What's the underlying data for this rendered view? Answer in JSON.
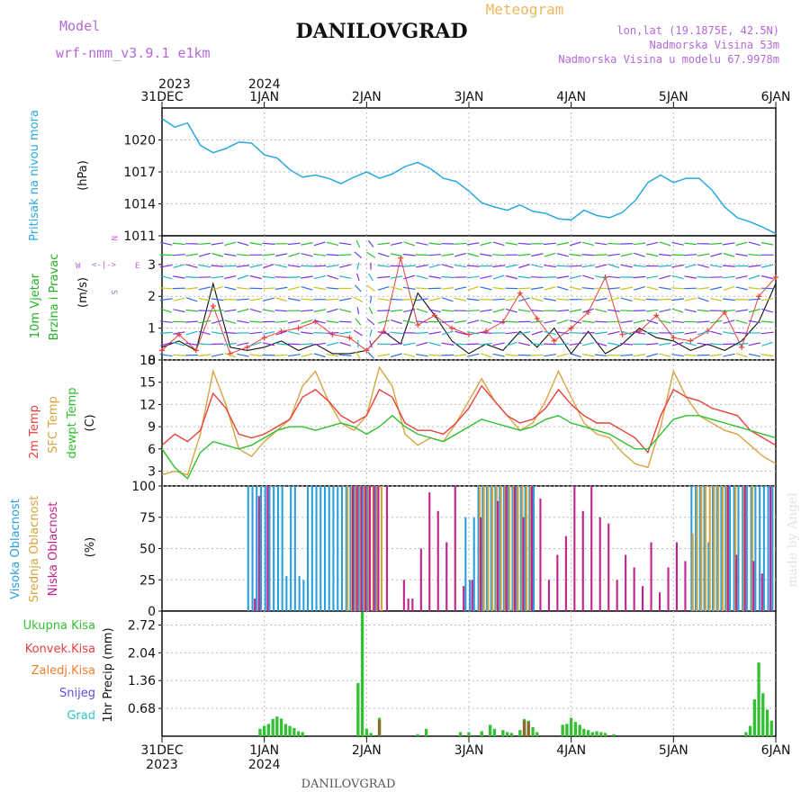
{
  "header": {
    "model_label": "Model",
    "model_name": "wrf-nmm_v3.9.1  e1km",
    "title": "DANILOVGRAD",
    "meteogram_label": "Meteogram",
    "location": "lon,lat (19.1875E, 42.5N)",
    "elevation": "Nadmorska Visina 53m",
    "model_elevation": "Nadmorska Visina u modelu 67.9978m",
    "footer": "DANILOVGRAD",
    "credit": "made by Angel"
  },
  "time_axis": {
    "labels": [
      "31DEC",
      "1JAN",
      "2JAN",
      "3JAN",
      "4JAN",
      "5JAN",
      "6JAN"
    ],
    "years": [
      "2023",
      "2024"
    ],
    "range_hours": [
      0,
      144
    ]
  },
  "colors": {
    "pressure": "#29a9e1",
    "temp2m": "#e8413c",
    "sfc_temp": "#d9a441",
    "dewpoint": "#2ec02e",
    "high_cloud": "#2a9fe0",
    "mid_cloud": "#d6a43c",
    "low_cloud": "#c0228e",
    "total_precip": "#33c033",
    "conv_precip": "#e84040",
    "frozen_precip": "#ef7e2e",
    "snow": "#5a4fe0",
    "hail": "#2ec6c6",
    "wind_label": "#25b024",
    "title_purple": "#b469d9",
    "meteogram_orange": "#e9b95c"
  },
  "chart_data": [
    {
      "type": "line",
      "name": "pressure",
      "ylabel_left": "Pritisak na nivou mora",
      "ylabel_unit": "(hPa)",
      "ylim": [
        1011,
        1023
      ],
      "yticks": [
        1011,
        1014,
        1017,
        1020
      ],
      "x": [
        0,
        3,
        6,
        9,
        12,
        15,
        18,
        21,
        24,
        27,
        30,
        33,
        36,
        39,
        42,
        45,
        48,
        51,
        54,
        57,
        60,
        63,
        66,
        69,
        72,
        75,
        78,
        81,
        84,
        87,
        90,
        93,
        96,
        99,
        102,
        105,
        108,
        111,
        114,
        117,
        120,
        123,
        126,
        129,
        132,
        135,
        138,
        141,
        144
      ],
      "values": [
        1022.0,
        1021.2,
        1021.6,
        1019.5,
        1018.8,
        1019.2,
        1019.8,
        1019.7,
        1018.6,
        1018.3,
        1017.2,
        1016.5,
        1016.7,
        1016.4,
        1015.9,
        1016.5,
        1017.0,
        1016.4,
        1016.8,
        1017.5,
        1017.9,
        1017.3,
        1016.4,
        1016.1,
        1015.2,
        1014.1,
        1013.7,
        1013.4,
        1013.9,
        1013.3,
        1013.1,
        1012.6,
        1012.5,
        1013.4,
        1012.9,
        1012.7,
        1013.2,
        1014.3,
        1016.0,
        1016.7,
        1016.0,
        1016.4,
        1016.4,
        1015.3,
        1013.7,
        1012.7,
        1012.3,
        1011.8,
        1011.2
      ]
    },
    {
      "type": "line",
      "name": "wind",
      "ylabel_left": "10m Vjetar",
      "ylabel_left2": "Brzina i Pravac",
      "ylabel_unit": "(m/s)",
      "compass": [
        "W",
        "E",
        "N",
        "S"
      ],
      "ylim": [
        0,
        3.9
      ],
      "yticks": [
        0,
        1,
        2,
        3
      ],
      "x": [
        0,
        4,
        8,
        12,
        16,
        20,
        24,
        28,
        32,
        36,
        40,
        44,
        48,
        52,
        56,
        60,
        64,
        68,
        72,
        76,
        80,
        84,
        88,
        92,
        96,
        100,
        104,
        108,
        112,
        116,
        120,
        124,
        128,
        132,
        136,
        140,
        144
      ],
      "speed": [
        0.4,
        0.6,
        0.3,
        2.4,
        0.4,
        0.3,
        0.4,
        0.6,
        0.3,
        0.5,
        0.2,
        0.2,
        0.3,
        0.9,
        0.5,
        2.1,
        1.4,
        0.6,
        0.2,
        0.5,
        0.3,
        0.9,
        0.4,
        1.0,
        0.2,
        0.9,
        0.2,
        0.5,
        1.0,
        0.7,
        0.6,
        0.3,
        0.5,
        0.3,
        0.6,
        1.2,
        2.4
      ],
      "speed_alt": [
        0.3,
        0.8,
        0.3,
        1.7,
        0.2,
        0.4,
        0.7,
        0.9,
        1.0,
        1.2,
        0.8,
        0.7,
        0.3,
        0.9,
        3.2,
        1.1,
        1.4,
        1.0,
        0.8,
        0.9,
        1.2,
        2.1,
        1.3,
        0.6,
        1.0,
        1.5,
        2.6,
        0.8,
        0.9,
        1.4,
        0.7,
        0.6,
        0.9,
        1.5,
        0.4,
        2.0,
        2.6
      ]
    },
    {
      "type": "line",
      "name": "temperature",
      "ylabel_left": "2m Temp",
      "ylabel_left2": "SFC Temp",
      "ylabel_left3": "dewpt Temp",
      "ylabel_unit": "(C)",
      "ylim": [
        1,
        18
      ],
      "yticks": [
        3,
        6,
        9,
        12,
        15,
        18
      ],
      "x": [
        0,
        3,
        6,
        9,
        12,
        15,
        18,
        21,
        24,
        27,
        30,
        33,
        36,
        39,
        42,
        45,
        48,
        51,
        54,
        57,
        60,
        63,
        66,
        69,
        72,
        75,
        78,
        81,
        84,
        87,
        90,
        93,
        96,
        99,
        102,
        105,
        108,
        111,
        114,
        117,
        120,
        123,
        126,
        129,
        132,
        135,
        138,
        141,
        144
      ],
      "t2m": [
        6.5,
        8.0,
        7.0,
        8.5,
        13.5,
        11.5,
        8.0,
        7.5,
        8.0,
        9.0,
        10.0,
        13.0,
        14.0,
        12.5,
        10.5,
        9.5,
        10.5,
        14.0,
        13.0,
        9.5,
        8.5,
        8.5,
        8.0,
        9.5,
        11.5,
        14.5,
        12.5,
        10.5,
        9.5,
        10.0,
        11.5,
        14.0,
        12.0,
        10.5,
        9.5,
        9.5,
        8.5,
        7.5,
        5.5,
        10.5,
        14.0,
        13.0,
        12.5,
        11.5,
        11.0,
        10.5,
        8.5,
        7.5,
        6.5
      ],
      "sfc": [
        2.5,
        3.0,
        2.5,
        8.0,
        16.5,
        12.0,
        6.0,
        5.0,
        7.0,
        8.5,
        10.0,
        14.5,
        16.5,
        12.5,
        9.5,
        8.5,
        10.5,
        17.0,
        14.5,
        8.0,
        6.5,
        7.5,
        7.0,
        9.5,
        12.5,
        15.5,
        12.5,
        10.5,
        8.5,
        9.5,
        12.5,
        16.5,
        13.0,
        9.5,
        8.0,
        7.5,
        5.5,
        4.0,
        3.5,
        9.0,
        16.5,
        13.0,
        10.5,
        9.5,
        8.5,
        8.0,
        6.5,
        5.0,
        4.0
      ],
      "dewpt": [
        6.0,
        3.5,
        2.0,
        5.5,
        7.0,
        6.5,
        6.0,
        6.5,
        7.5,
        8.5,
        9.0,
        9.0,
        8.5,
        9.0,
        9.5,
        9.0,
        8.0,
        9.0,
        10.5,
        9.0,
        8.0,
        7.5,
        7.0,
        8.0,
        9.0,
        10.0,
        9.5,
        9.0,
        8.5,
        9.0,
        10.0,
        10.5,
        9.5,
        9.0,
        8.5,
        8.0,
        7.0,
        6.0,
        6.0,
        8.0,
        10.0,
        10.5,
        10.5,
        10.0,
        9.5,
        9.0,
        8.5,
        8.0,
        7.5
      ]
    },
    {
      "type": "bar",
      "name": "cloud_cover",
      "ylabel_left": "Visoka Oblacnost",
      "ylabel_left2": "Srednja Oblacnost",
      "ylabel_left3": "Niska Oblacnost",
      "ylabel_unit": "(%)",
      "ylim": [
        0,
        100
      ],
      "yticks": [
        0,
        25,
        50,
        75,
        100
      ],
      "high": [
        [
          20,
          100
        ],
        [
          21,
          100
        ],
        [
          22,
          100
        ],
        [
          23,
          100
        ],
        [
          24,
          100
        ],
        [
          25,
          100
        ],
        [
          26,
          100
        ],
        [
          27,
          100
        ],
        [
          28,
          100
        ],
        [
          29,
          28
        ],
        [
          30,
          100
        ],
        [
          31,
          100
        ],
        [
          32,
          28
        ],
        [
          33,
          25
        ],
        [
          34,
          100
        ],
        [
          35,
          100
        ],
        [
          36,
          100
        ],
        [
          37,
          100
        ],
        [
          38,
          100
        ],
        [
          39,
          100
        ],
        [
          40,
          100
        ],
        [
          41,
          100
        ],
        [
          42,
          100
        ],
        [
          43,
          100
        ],
        [
          44,
          100
        ],
        [
          45,
          100
        ],
        [
          46,
          100
        ],
        [
          47,
          100
        ],
        [
          48,
          100
        ],
        [
          50,
          100
        ],
        [
          71,
          75
        ],
        [
          72,
          25
        ],
        [
          73,
          75
        ],
        [
          74,
          100
        ],
        [
          75,
          100
        ],
        [
          76,
          100
        ],
        [
          77,
          100
        ],
        [
          78,
          100
        ],
        [
          79,
          100
        ],
        [
          80,
          100
        ],
        [
          81,
          100
        ],
        [
          82,
          100
        ],
        [
          83,
          100
        ],
        [
          84,
          100
        ],
        [
          85,
          100
        ],
        [
          86,
          100
        ],
        [
          87,
          100
        ],
        [
          124,
          100
        ],
        [
          125,
          100
        ],
        [
          126,
          100
        ],
        [
          127,
          100
        ],
        [
          128,
          55
        ],
        [
          129,
          100
        ],
        [
          130,
          100
        ],
        [
          131,
          100
        ],
        [
          132,
          100
        ],
        [
          133,
          100
        ],
        [
          134,
          100
        ],
        [
          135,
          100
        ],
        [
          136,
          100
        ],
        [
          137,
          100
        ],
        [
          138,
          100
        ],
        [
          139,
          100
        ],
        [
          140,
          100
        ],
        [
          141,
          100
        ],
        [
          142,
          100
        ],
        [
          143,
          100
        ]
      ],
      "mid": [
        [
          43,
          100
        ],
        [
          44,
          100
        ],
        [
          45,
          100
        ],
        [
          46,
          100
        ],
        [
          47,
          100
        ],
        [
          48,
          100
        ],
        [
          49,
          100
        ],
        [
          50,
          100
        ],
        [
          51,
          100
        ],
        [
          74,
          100
        ],
        [
          75,
          100
        ],
        [
          76,
          100
        ],
        [
          77,
          100
        ],
        [
          78,
          100
        ],
        [
          79,
          100
        ],
        [
          80,
          100
        ],
        [
          81,
          100
        ],
        [
          82,
          100
        ],
        [
          83,
          100
        ],
        [
          84,
          100
        ],
        [
          85,
          100
        ],
        [
          86,
          100
        ],
        [
          124,
          62
        ],
        [
          125,
          100
        ],
        [
          126,
          100
        ],
        [
          127,
          100
        ],
        [
          128,
          100
        ],
        [
          129,
          100
        ],
        [
          130,
          100
        ],
        [
          131,
          100
        ],
        [
          132,
          100
        ],
        [
          134,
          100
        ],
        [
          136,
          100
        ],
        [
          138,
          100
        ]
      ],
      "low": [
        [
          21,
          10
        ],
        [
          22,
          92
        ],
        [
          24,
          100
        ],
        [
          44,
          100
        ],
        [
          45,
          100
        ],
        [
          46,
          100
        ],
        [
          47,
          100
        ],
        [
          48,
          100
        ],
        [
          49,
          100
        ],
        [
          50,
          100
        ],
        [
          52,
          100
        ],
        [
          56,
          25
        ],
        [
          57,
          10
        ],
        [
          58,
          10
        ],
        [
          60,
          50
        ],
        [
          62,
          95
        ],
        [
          64,
          80
        ],
        [
          66,
          55
        ],
        [
          68,
          100
        ],
        [
          70,
          20
        ],
        [
          72,
          25
        ],
        [
          74,
          75
        ],
        [
          78,
          88
        ],
        [
          80,
          100
        ],
        [
          82,
          100
        ],
        [
          84,
          75
        ],
        [
          86,
          100
        ],
        [
          88,
          90
        ],
        [
          90,
          25
        ],
        [
          92,
          45
        ],
        [
          94,
          60
        ],
        [
          96,
          100
        ],
        [
          98,
          80
        ],
        [
          100,
          100
        ],
        [
          102,
          75
        ],
        [
          104,
          70
        ],
        [
          106,
          25
        ],
        [
          108,
          45
        ],
        [
          110,
          35
        ],
        [
          112,
          20
        ],
        [
          114,
          55
        ],
        [
          116,
          15
        ],
        [
          118,
          35
        ],
        [
          120,
          55
        ],
        [
          122,
          40
        ],
        [
          132,
          100
        ],
        [
          134,
          45
        ],
        [
          136,
          100
        ],
        [
          138,
          40
        ],
        [
          140,
          30
        ],
        [
          142,
          100
        ]
      ]
    },
    {
      "type": "bar",
      "name": "precipitation",
      "ylabel_left": "1hr Precip (mm)",
      "legend": [
        "Ukupna Kisa",
        "Konvek.Kisa",
        "Zaledj.Kisa",
        "Snijeg",
        "Grad"
      ],
      "ylim": [
        0,
        3.06
      ],
      "yticks": [
        0.68,
        1.36,
        2.04,
        2.72
      ],
      "total": [
        [
          23,
          0.18
        ],
        [
          24,
          0.25
        ],
        [
          25,
          0.3
        ],
        [
          26,
          0.42
        ],
        [
          27,
          0.48
        ],
        [
          28,
          0.43
        ],
        [
          29,
          0.3
        ],
        [
          30,
          0.25
        ],
        [
          31,
          0.2
        ],
        [
          32,
          0.12
        ],
        [
          33,
          0.1
        ],
        [
          46,
          1.3
        ],
        [
          47,
          3.15
        ],
        [
          48,
          0.18
        ],
        [
          49,
          0.08
        ],
        [
          51,
          0.45
        ],
        [
          60,
          0.05
        ],
        [
          62,
          0.18
        ],
        [
          70,
          0.1
        ],
        [
          72,
          0.1
        ],
        [
          75,
          0.12
        ],
        [
          77,
          0.28
        ],
        [
          78,
          0.18
        ],
        [
          80,
          0.15
        ],
        [
          81,
          0.1
        ],
        [
          82,
          0.08
        ],
        [
          84,
          0.15
        ],
        [
          85,
          0.42
        ],
        [
          86,
          0.38
        ],
        [
          87,
          0.22
        ],
        [
          88,
          0.1
        ],
        [
          94,
          0.28
        ],
        [
          95,
          0.3
        ],
        [
          96,
          0.45
        ],
        [
          97,
          0.35
        ],
        [
          98,
          0.28
        ],
        [
          99,
          0.18
        ],
        [
          100,
          0.15
        ],
        [
          101,
          0.1
        ],
        [
          102,
          0.12
        ],
        [
          103,
          0.1
        ],
        [
          104,
          0.08
        ],
        [
          106,
          0.05
        ],
        [
          137,
          0.1
        ],
        [
          138,
          0.25
        ],
        [
          139,
          0.9
        ],
        [
          140,
          1.8
        ],
        [
          141,
          1.05
        ],
        [
          142,
          0.65
        ],
        [
          143,
          0.38
        ]
      ],
      "frozen": [
        [
          51,
          0.4
        ],
        [
          85,
          0.38
        ],
        [
          86,
          0.35
        ]
      ]
    }
  ]
}
